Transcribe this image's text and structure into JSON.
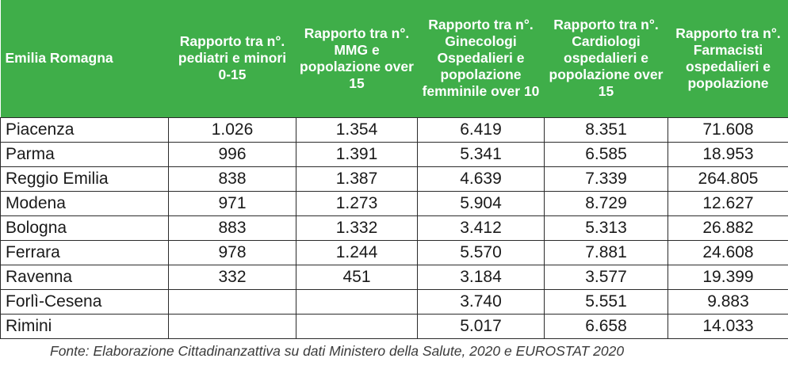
{
  "headers": [
    "Emilia Romagna",
    "Rapporto tra n°. pediatri e minori 0-15",
    "Rapporto tra n°. MMG e popolazione over 15",
    "Rapporto tra n°. Ginecologi Ospedalieri e popolazione femminile over 10",
    "Rapporto tra n°. Cardiologi ospedalieri e popolazione over 15",
    "Rapporto tra n°. Farmacisti ospedalieri e popolazione"
  ],
  "rows": [
    [
      "Piacenza",
      "1.026",
      "1.354",
      "6.419",
      "8.351",
      "71.608"
    ],
    [
      "Parma",
      "996",
      "1.391",
      "5.341",
      "6.585",
      "18.953"
    ],
    [
      "Reggio Emilia",
      "838",
      "1.387",
      "4.639",
      "7.339",
      "264.805"
    ],
    [
      "Modena",
      "971",
      "1.273",
      "5.904",
      "8.729",
      "12.627"
    ],
    [
      "Bologna",
      "883",
      "1.332",
      "3.412",
      "5.313",
      "26.882"
    ],
    [
      "Ferrara",
      "978",
      "1.244",
      "5.570",
      "7.881",
      "24.608"
    ],
    [
      "Ravenna",
      "332",
      "451",
      "3.184",
      "3.577",
      "19.399"
    ],
    [
      "Forlì-Cesena",
      "",
      "",
      "3.740",
      "5.551",
      "9.883"
    ],
    [
      "Rimini",
      "",
      "",
      "5.017",
      "6.658",
      "14.033"
    ]
  ],
  "source": "Fonte: Elaborazione Cittadinanzattiva su dati Ministero della Salute, 2020 e EUROSTAT 2020",
  "colors": {
    "header_bg": "#3fae49",
    "header_text": "#ffffff",
    "border": "#2b2b2b"
  }
}
